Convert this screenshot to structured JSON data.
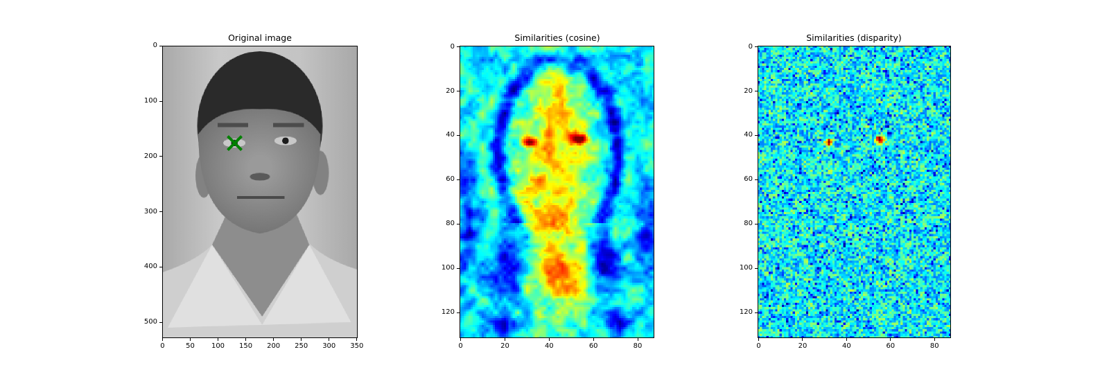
{
  "chart_data": [
    {
      "type": "image",
      "title": "Original image",
      "colormap": "gray",
      "image_shape": [
        529,
        352
      ],
      "xlim": [
        0,
        352
      ],
      "ylim": [
        529,
        0
      ],
      "xticks": [
        0,
        50,
        100,
        150,
        200,
        250,
        300,
        350
      ],
      "yticks": [
        0,
        100,
        200,
        300,
        400,
        500
      ],
      "marker": {
        "x": 130,
        "y": 175,
        "symbol": "x",
        "color": "#008000"
      }
    },
    {
      "type": "heatmap",
      "title": "Similarities (cosine)",
      "colormap": "jet",
      "image_shape": [
        132,
        88
      ],
      "xlim": [
        0,
        88
      ],
      "ylim": [
        132,
        0
      ],
      "xticks": [
        0,
        20,
        40,
        60,
        80
      ],
      "yticks": [
        0,
        20,
        40,
        60,
        80,
        100,
        120
      ],
      "peaks": [
        {
          "x": 31,
          "y": 43
        },
        {
          "x": 54,
          "y": 42
        }
      ]
    },
    {
      "type": "heatmap",
      "title": "Similarities (disparity)",
      "colormap": "jet",
      "image_shape": [
        132,
        88
      ],
      "xlim": [
        0,
        88
      ],
      "ylim": [
        132,
        0
      ],
      "xticks": [
        0,
        20,
        40,
        60,
        80
      ],
      "yticks": [
        0,
        20,
        40,
        60,
        80,
        100,
        120
      ],
      "peaks": [
        {
          "x": 32,
          "y": 43
        },
        {
          "x": 55,
          "y": 42
        }
      ]
    }
  ]
}
